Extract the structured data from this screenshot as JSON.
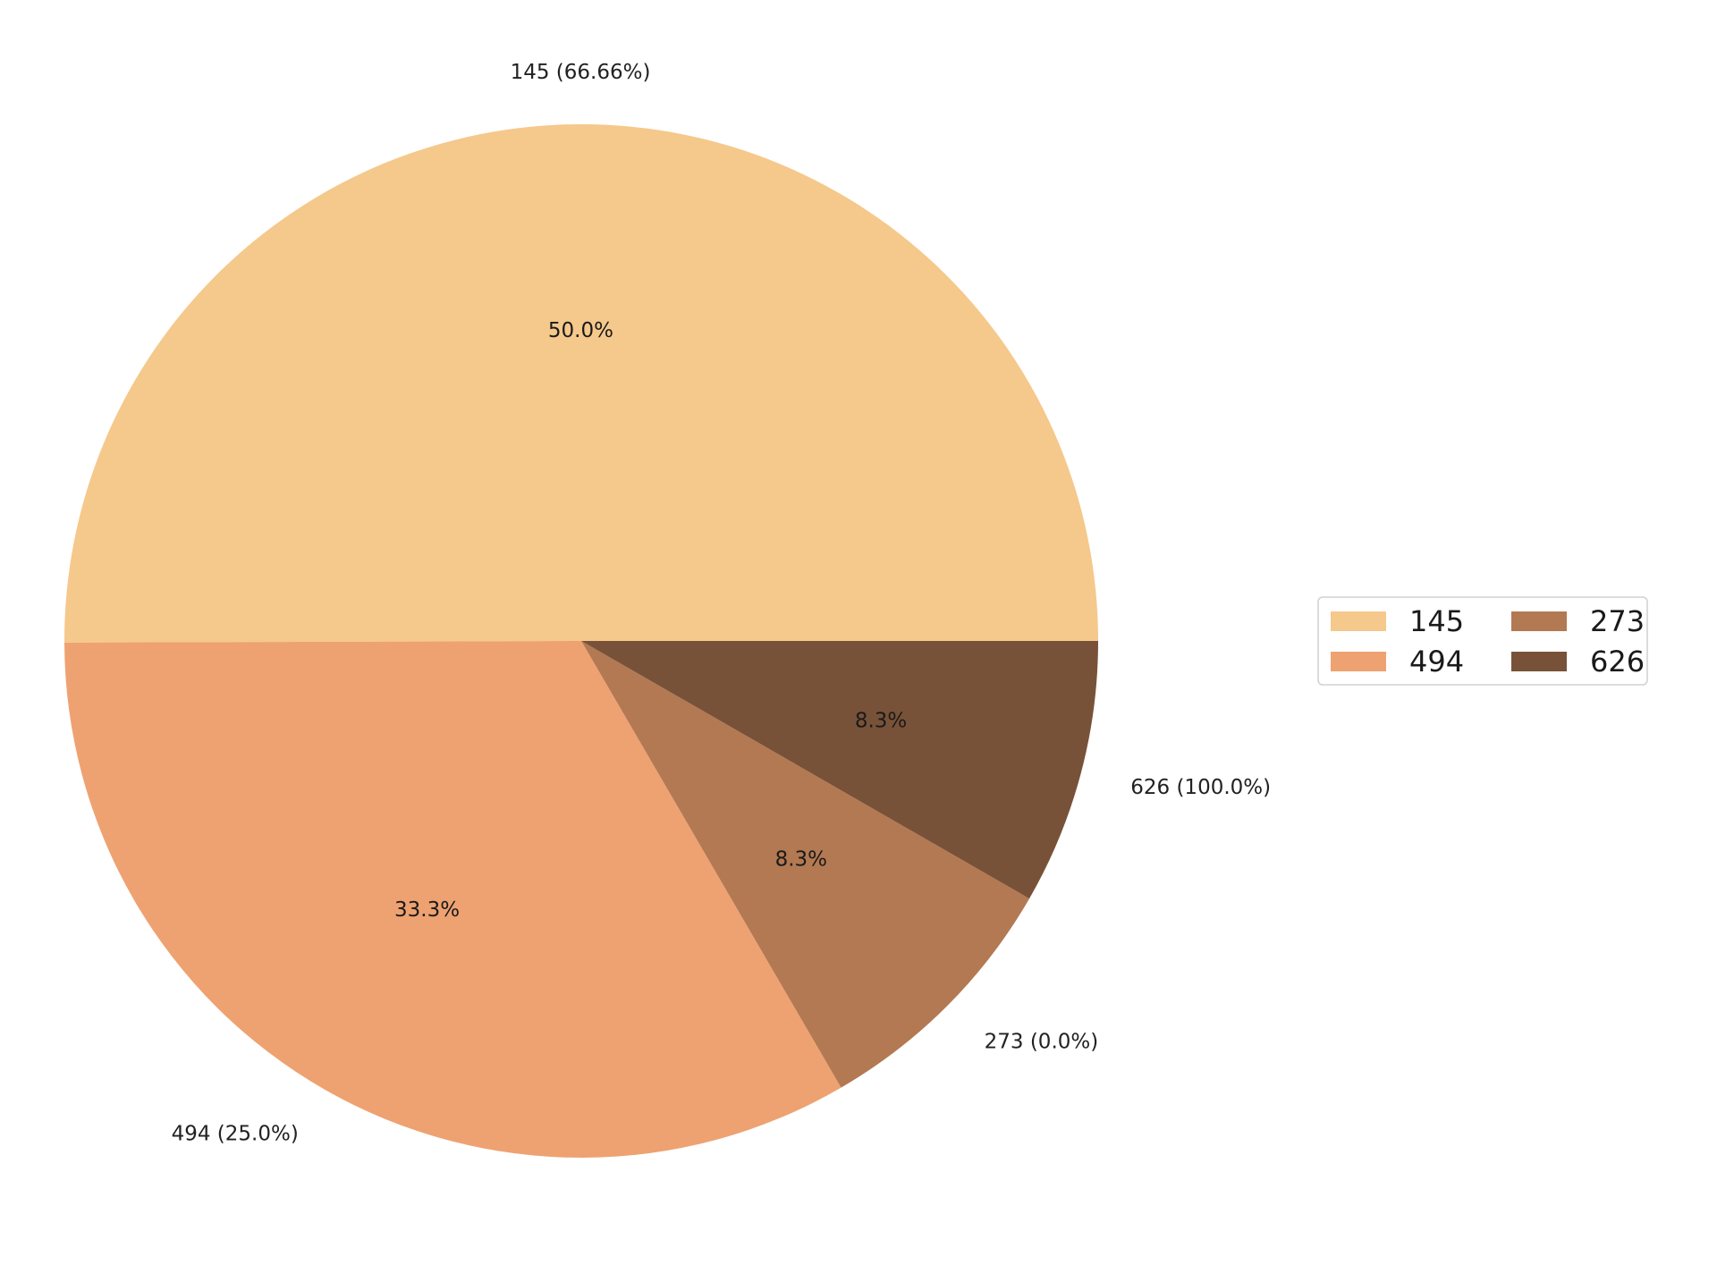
{
  "chart_data": {
    "type": "pie",
    "title": "",
    "start_angle_deg": 0,
    "direction": "counterclockwise",
    "slices": [
      {
        "name": "145",
        "percent": 50.0,
        "outer_label": "145 (66.66%)",
        "inner_label": "50.0%",
        "color": "#F5C88B"
      },
      {
        "name": "494",
        "percent": 33.3,
        "outer_label": "494 (25.0%)",
        "inner_label": "33.3%",
        "color": "#EEA271"
      },
      {
        "name": "273",
        "percent": 8.3,
        "outer_label": "273 (0.0%)",
        "inner_label": "8.3%",
        "color": "#B37952"
      },
      {
        "name": "626",
        "percent": 8.3,
        "outer_label": "626 (100.0%)",
        "inner_label": "8.3%",
        "color": "#785238"
      }
    ],
    "legend": {
      "position": "right",
      "columns": 2,
      "entries": [
        "145",
        "494",
        "273",
        "626"
      ]
    }
  }
}
